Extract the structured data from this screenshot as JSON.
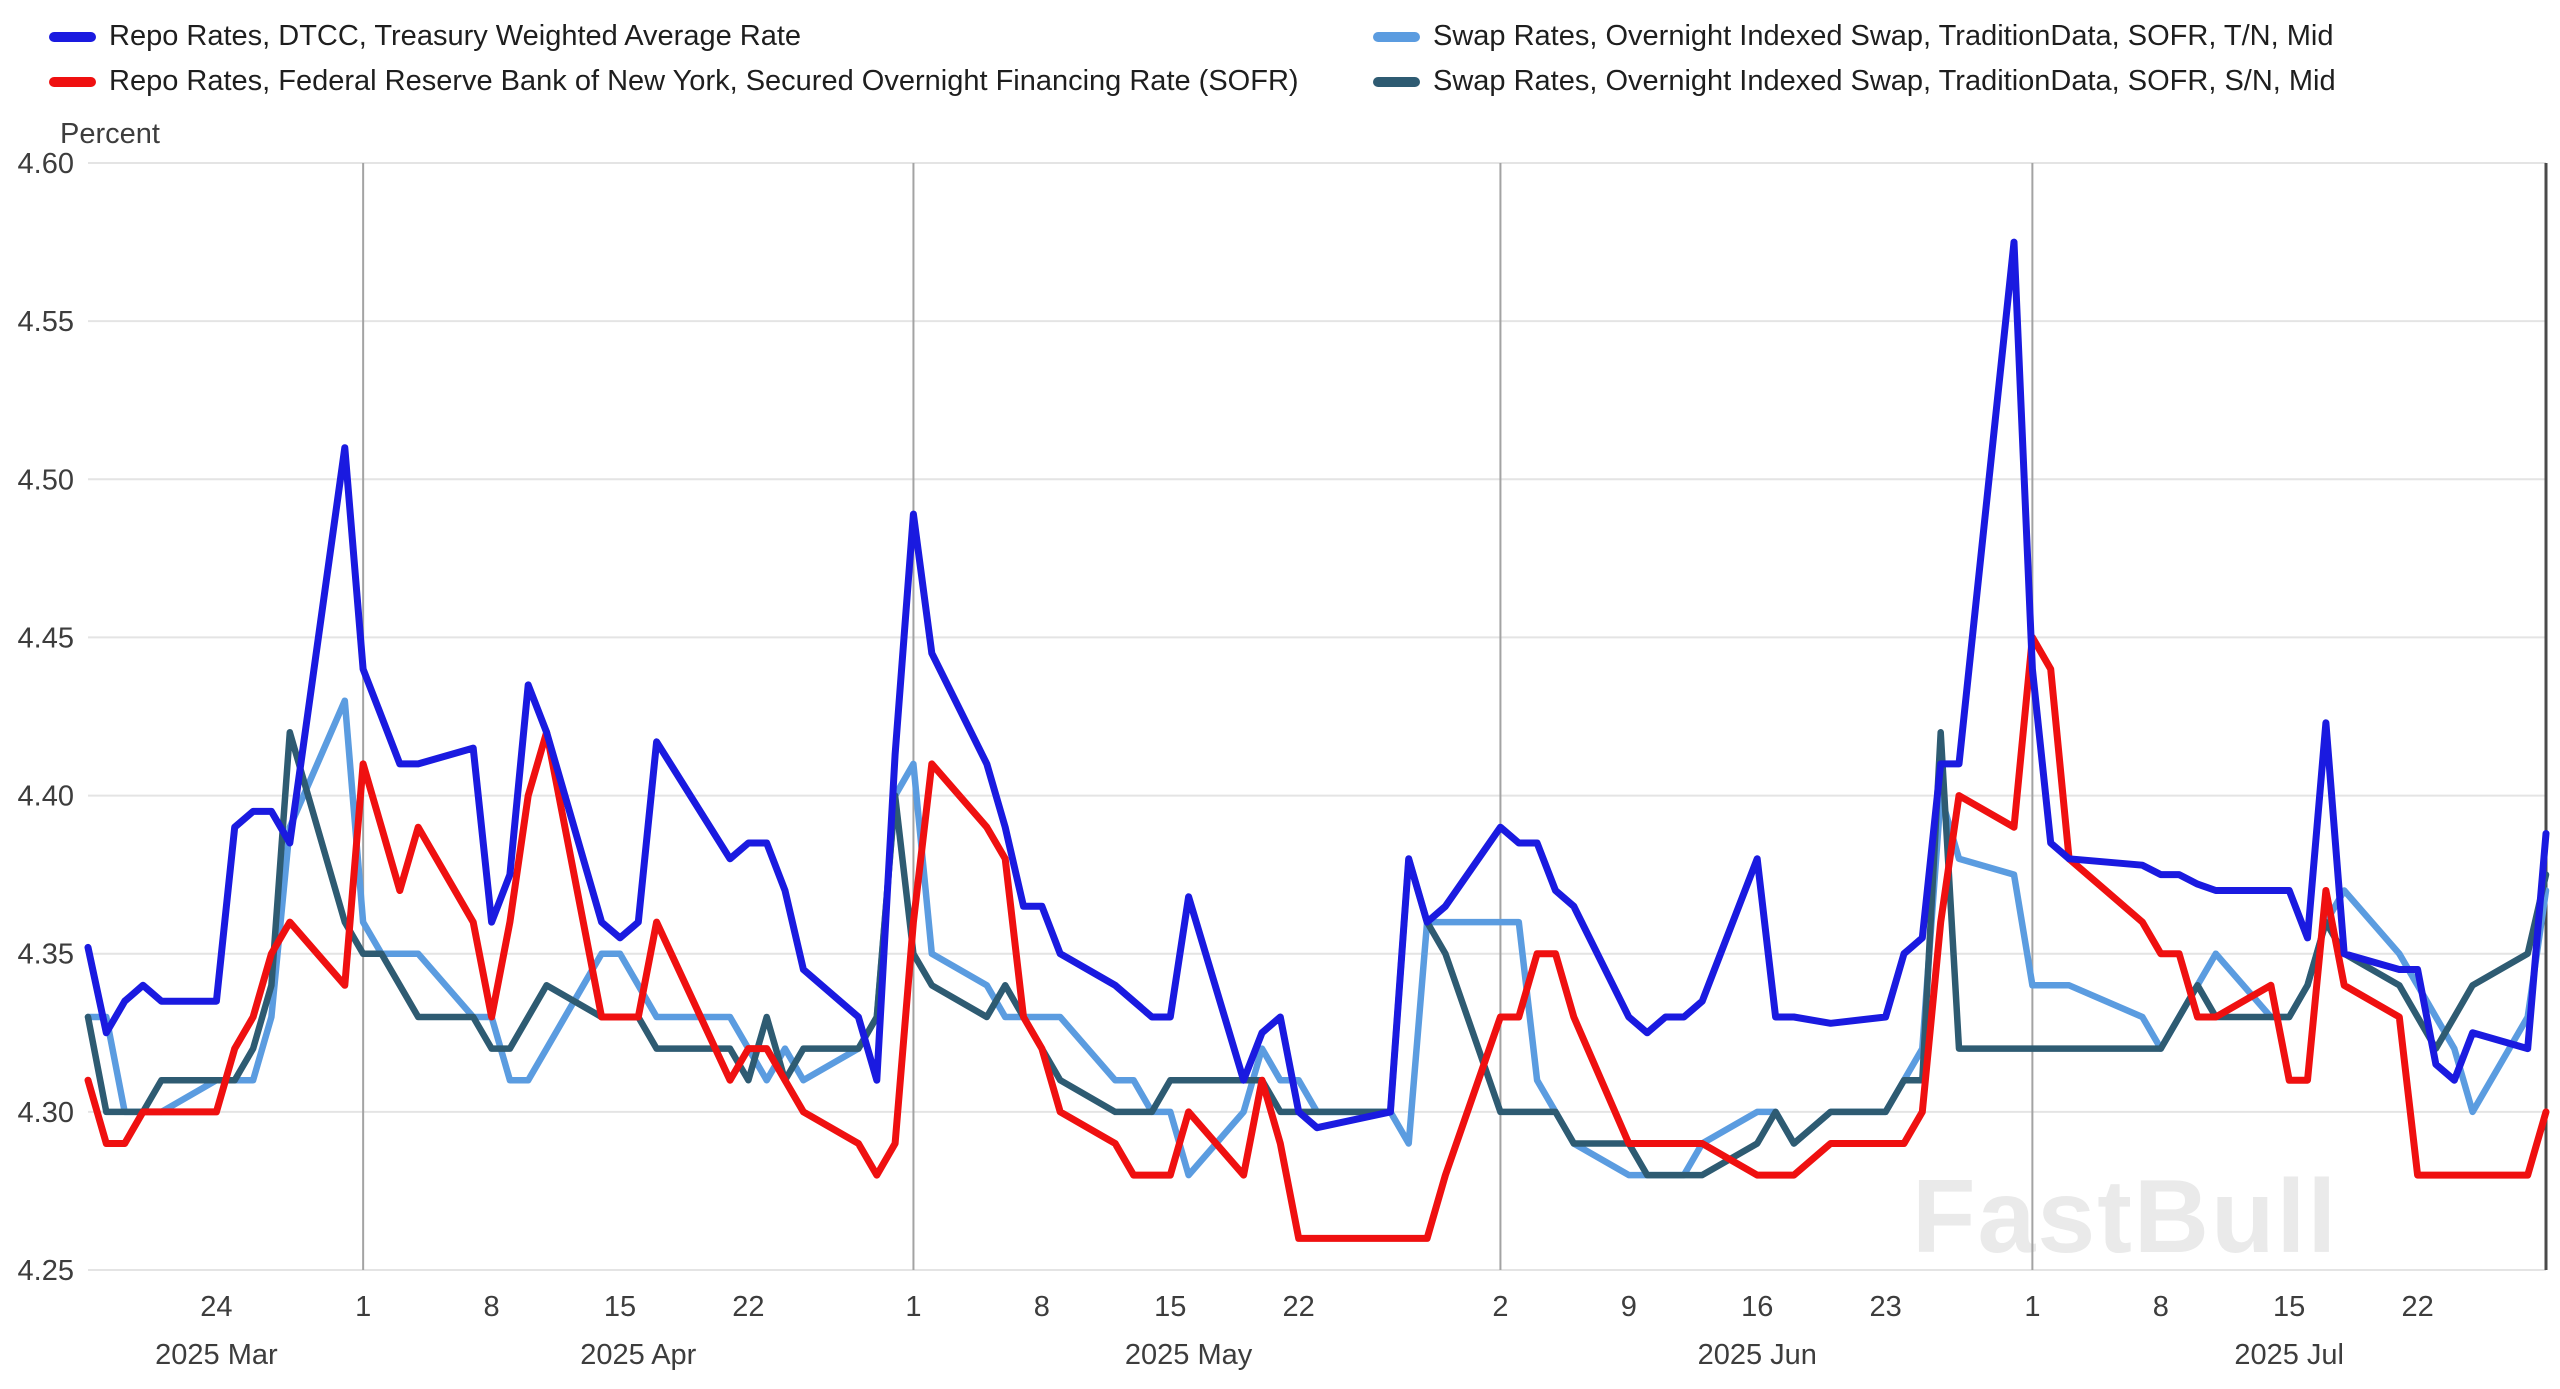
{
  "page": {
    "background": "#ffffff",
    "watermark": "FastBull"
  },
  "chart_data": {
    "type": "line",
    "ylabel": "Percent",
    "ylim": [
      4.25,
      4.6
    ],
    "grid": true,
    "legend_position": "top",
    "colors": {
      "h_grid": "#e4e4e4",
      "month_grid": "#a3a3a3",
      "axis": "#4a4a4a",
      "text": "#3d3d3d"
    },
    "yticks": [
      {
        "value": 4.25,
        "label": "4.25"
      },
      {
        "value": 4.3,
        "label": "4.30"
      },
      {
        "value": 4.35,
        "label": "4.35"
      },
      {
        "value": 4.4,
        "label": "4.40"
      },
      {
        "value": 4.45,
        "label": "4.45"
      },
      {
        "value": 4.5,
        "label": "4.50"
      },
      {
        "value": 4.55,
        "label": "4.55"
      },
      {
        "value": 4.6,
        "label": "4.60"
      }
    ],
    "xticks": [
      {
        "date": "2025-03-24",
        "label": "24"
      },
      {
        "date": "2025-04-01",
        "label": "1"
      },
      {
        "date": "2025-04-08",
        "label": "8"
      },
      {
        "date": "2025-04-15",
        "label": "15"
      },
      {
        "date": "2025-04-22",
        "label": "22"
      },
      {
        "date": "2025-05-01",
        "label": "1"
      },
      {
        "date": "2025-05-08",
        "label": "8"
      },
      {
        "date": "2025-05-15",
        "label": "15"
      },
      {
        "date": "2025-05-22",
        "label": "22"
      },
      {
        "date": "2025-06-02",
        "label": "2"
      },
      {
        "date": "2025-06-09",
        "label": "9"
      },
      {
        "date": "2025-06-16",
        "label": "16"
      },
      {
        "date": "2025-06-23",
        "label": "23"
      },
      {
        "date": "2025-07-01",
        "label": "1"
      },
      {
        "date": "2025-07-08",
        "label": "8"
      },
      {
        "date": "2025-07-15",
        "label": "15"
      },
      {
        "date": "2025-07-22",
        "label": "22"
      }
    ],
    "month_labels": [
      {
        "label": "2025 Mar",
        "center_date": "2025-03-24"
      },
      {
        "label": "2025 Apr",
        "center_date": "2025-04-16"
      },
      {
        "label": "2025 May",
        "center_date": "2025-05-16"
      },
      {
        "label": "2025 Jun",
        "center_date": "2025-06-16"
      },
      {
        "label": "2025 Jul",
        "center_date": "2025-07-15"
      }
    ],
    "month_gridlines": [
      "2025-04-01",
      "2025-05-01",
      "2025-06-02",
      "2025-07-01"
    ],
    "x_dates": [
      "2025-03-17",
      "2025-03-18",
      "2025-03-19",
      "2025-03-20",
      "2025-03-21",
      "2025-03-24",
      "2025-03-25",
      "2025-03-26",
      "2025-03-27",
      "2025-03-28",
      "2025-03-31",
      "2025-04-01",
      "2025-04-02",
      "2025-04-03",
      "2025-04-04",
      "2025-04-07",
      "2025-04-08",
      "2025-04-09",
      "2025-04-10",
      "2025-04-11",
      "2025-04-14",
      "2025-04-15",
      "2025-04-16",
      "2025-04-17",
      "2025-04-21",
      "2025-04-22",
      "2025-04-23",
      "2025-04-24",
      "2025-04-25",
      "2025-04-28",
      "2025-04-29",
      "2025-04-30",
      "2025-05-01",
      "2025-05-02",
      "2025-05-05",
      "2025-05-06",
      "2025-05-07",
      "2025-05-08",
      "2025-05-09",
      "2025-05-12",
      "2025-05-13",
      "2025-05-14",
      "2025-05-15",
      "2025-05-16",
      "2025-05-19",
      "2025-05-20",
      "2025-05-21",
      "2025-05-22",
      "2025-05-23",
      "2025-05-27",
      "2025-05-28",
      "2025-05-29",
      "2025-05-30",
      "2025-06-02",
      "2025-06-03",
      "2025-06-04",
      "2025-06-05",
      "2025-06-06",
      "2025-06-09",
      "2025-06-10",
      "2025-06-11",
      "2025-06-12",
      "2025-06-13",
      "2025-06-16",
      "2025-06-17",
      "2025-06-18",
      "2025-06-20",
      "2025-06-23",
      "2025-06-24",
      "2025-06-25",
      "2025-06-26",
      "2025-06-27",
      "2025-06-30",
      "2025-07-01",
      "2025-07-02",
      "2025-07-03",
      "2025-07-07",
      "2025-07-08",
      "2025-07-09",
      "2025-07-10",
      "2025-07-11",
      "2025-07-14",
      "2025-07-15",
      "2025-07-16",
      "2025-07-17",
      "2025-07-18",
      "2025-07-21",
      "2025-07-22",
      "2025-07-23",
      "2025-07-24",
      "2025-07-25",
      "2025-07-28",
      "2025-07-29"
    ],
    "series": [
      {
        "id": "repo-dtcc",
        "name": "Repo Rates, DTCC, Treasury Weighted Average Rate",
        "color": "#1a1ae0",
        "values": [
          4.352,
          4.325,
          4.335,
          4.34,
          4.335,
          4.335,
          4.39,
          4.395,
          4.395,
          4.385,
          4.51,
          4.44,
          4.425,
          4.41,
          4.41,
          4.415,
          4.36,
          4.375,
          4.435,
          4.42,
          4.36,
          4.355,
          4.36,
          4.417,
          4.38,
          4.385,
          4.385,
          4.37,
          4.345,
          4.33,
          4.31,
          4.413,
          4.489,
          4.445,
          4.41,
          4.39,
          4.365,
          4.365,
          4.35,
          4.34,
          4.335,
          4.33,
          4.33,
          4.368,
          4.31,
          4.325,
          4.33,
          4.3,
          4.295,
          4.3,
          4.38,
          4.36,
          4.365,
          4.39,
          4.385,
          4.385,
          4.37,
          4.365,
          4.33,
          4.325,
          4.33,
          4.33,
          4.335,
          4.38,
          4.33,
          4.33,
          4.328,
          4.33,
          4.35,
          4.355,
          4.41,
          4.41,
          4.575,
          4.44,
          4.385,
          4.38,
          4.378,
          4.375,
          4.375,
          4.372,
          4.37,
          4.37,
          4.37,
          4.355,
          4.423,
          4.35,
          4.345,
          4.345,
          4.315,
          4.31,
          4.325,
          4.32,
          4.388
        ]
      },
      {
        "id": "repo-sofr-nyfed",
        "name": "Repo Rates, Federal Reserve Bank of New York, Secured Overnight Financing Rate (SOFR)",
        "color": "#ef1010",
        "values": [
          4.31,
          4.29,
          4.29,
          4.3,
          4.3,
          4.3,
          4.32,
          4.33,
          4.35,
          4.36,
          4.34,
          4.41,
          4.39,
          4.37,
          4.39,
          4.36,
          4.33,
          4.36,
          4.4,
          4.42,
          4.33,
          4.33,
          4.33,
          4.36,
          4.31,
          4.32,
          4.32,
          4.31,
          4.3,
          4.29,
          4.28,
          4.29,
          4.36,
          4.41,
          4.39,
          4.38,
          4.33,
          4.32,
          4.3,
          4.29,
          4.28,
          4.28,
          4.28,
          4.3,
          4.28,
          4.31,
          4.29,
          4.26,
          4.26,
          4.26,
          4.26,
          4.26,
          4.28,
          4.33,
          4.33,
          4.35,
          4.35,
          4.33,
          4.29,
          4.29,
          4.29,
          4.29,
          4.29,
          4.28,
          4.28,
          4.28,
          4.29,
          4.29,
          4.29,
          4.3,
          4.36,
          4.4,
          4.39,
          4.45,
          4.44,
          4.38,
          4.36,
          4.35,
          4.35,
          4.33,
          4.33,
          4.34,
          4.31,
          4.31,
          4.37,
          4.34,
          4.33,
          4.28,
          4.28,
          4.28,
          4.28,
          4.28,
          4.3
        ]
      },
      {
        "id": "ois-sofr-tn",
        "name": "Swap Rates, Overnight Indexed Swap, TraditionData, SOFR, T/N, Mid",
        "color": "#5b9ce0",
        "values": [
          4.33,
          4.33,
          4.3,
          4.3,
          4.3,
          4.31,
          4.31,
          4.31,
          4.33,
          4.39,
          4.43,
          4.36,
          4.35,
          4.35,
          4.35,
          4.33,
          4.33,
          4.31,
          4.31,
          4.32,
          4.35,
          4.35,
          4.34,
          4.33,
          4.33,
          4.32,
          4.31,
          4.32,
          4.31,
          4.32,
          4.33,
          4.4,
          4.41,
          4.35,
          4.34,
          4.33,
          4.33,
          4.33,
          4.33,
          4.31,
          4.31,
          4.3,
          4.3,
          4.28,
          4.3,
          4.32,
          4.31,
          4.31,
          4.3,
          4.3,
          4.29,
          4.36,
          4.36,
          4.36,
          4.36,
          4.31,
          4.3,
          4.29,
          4.28,
          4.28,
          4.28,
          4.28,
          4.29,
          4.3,
          4.3,
          4.29,
          4.3,
          4.3,
          4.31,
          4.32,
          4.4,
          4.38,
          4.375,
          4.34,
          4.34,
          4.34,
          4.33,
          4.32,
          4.33,
          4.34,
          4.35,
          4.33,
          4.33,
          4.34,
          4.36,
          4.37,
          4.35,
          4.34,
          4.33,
          4.32,
          4.3,
          4.33,
          4.37
        ]
      },
      {
        "id": "ois-sofr-sn",
        "name": "Swap Rates, Overnight Indexed Swap, TraditionData, SOFR, S/N, Mid",
        "color": "#2e5b72",
        "values": [
          4.33,
          4.3,
          4.3,
          4.3,
          4.31,
          4.31,
          4.31,
          4.32,
          4.34,
          4.42,
          4.36,
          4.35,
          4.35,
          4.34,
          4.33,
          4.33,
          4.32,
          4.32,
          4.33,
          4.34,
          4.33,
          4.33,
          4.33,
          4.32,
          4.32,
          4.31,
          4.33,
          4.31,
          4.32,
          4.32,
          4.33,
          4.4,
          4.35,
          4.34,
          4.33,
          4.34,
          4.33,
          4.32,
          4.31,
          4.3,
          4.3,
          4.3,
          4.31,
          4.31,
          4.31,
          4.31,
          4.3,
          4.3,
          4.3,
          4.3,
          4.38,
          4.36,
          4.35,
          4.3,
          4.3,
          4.3,
          4.3,
          4.29,
          4.29,
          4.28,
          4.28,
          4.28,
          4.28,
          4.29,
          4.3,
          4.29,
          4.3,
          4.3,
          4.31,
          4.31,
          4.42,
          4.32,
          4.32,
          4.32,
          4.32,
          4.32,
          4.32,
          4.32,
          4.33,
          4.34,
          4.33,
          4.33,
          4.33,
          4.34,
          4.36,
          4.35,
          4.34,
          4.33,
          4.32,
          4.33,
          4.34,
          4.35,
          4.375
        ]
      }
    ]
  }
}
